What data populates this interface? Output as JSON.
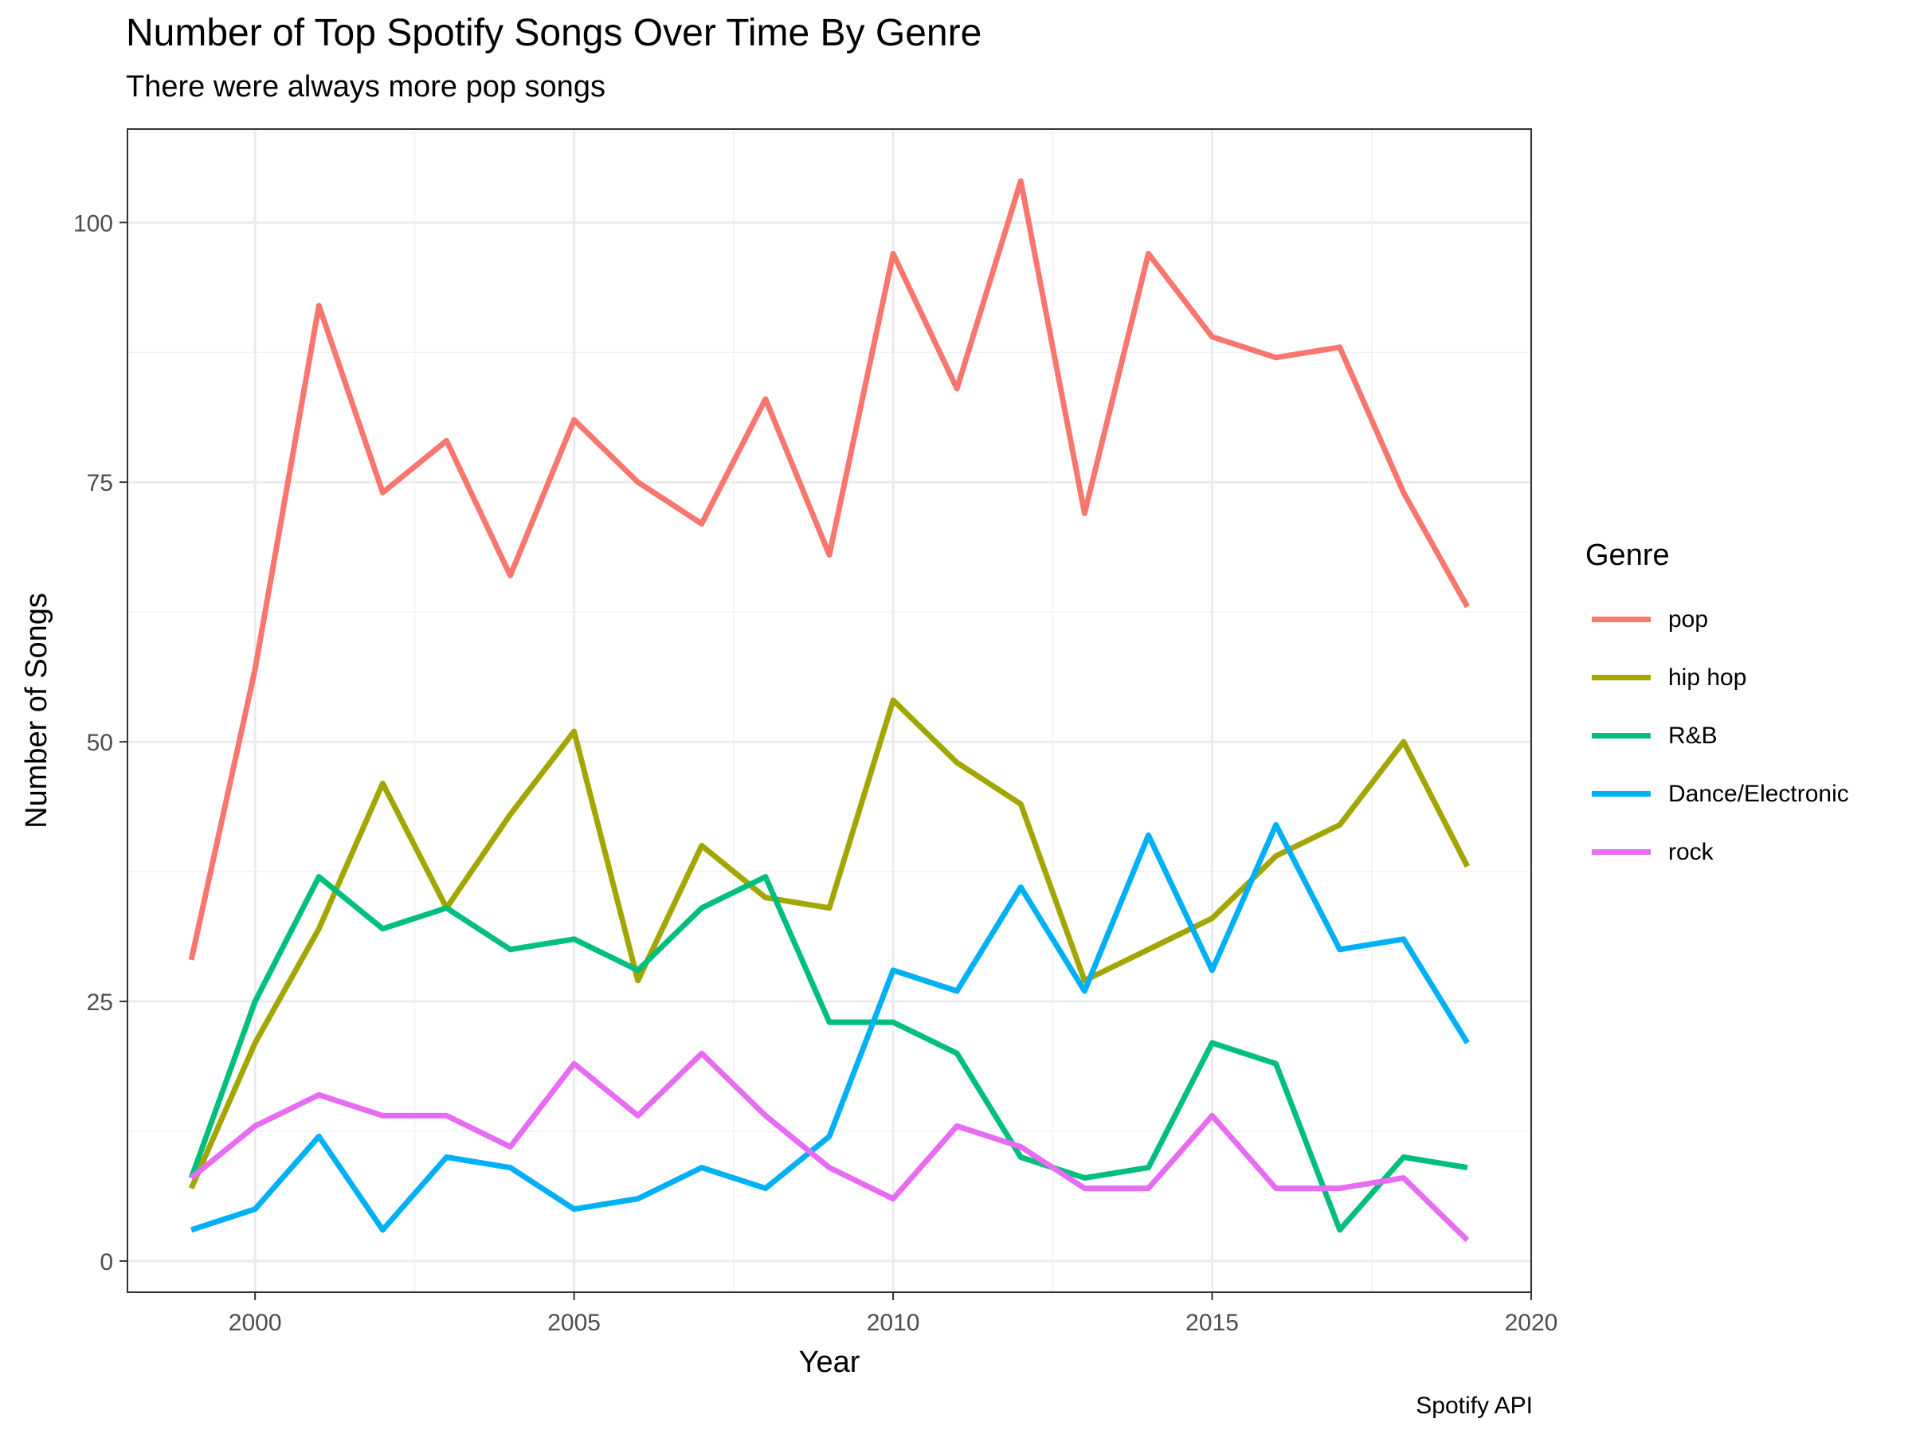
{
  "title": "Number of Top Spotify Songs Over Time By Genre",
  "subtitle": "There were always more pop songs",
  "caption": "Spotify API",
  "chart_data": {
    "type": "line",
    "xlabel": "Year",
    "ylabel": "Number of Songs",
    "xlim": [
      1998,
      2020
    ],
    "ylim": [
      -3,
      109
    ],
    "x_ticks": [
      2000,
      2005,
      2010,
      2015,
      2020
    ],
    "y_ticks": [
      0,
      25,
      50,
      75,
      100
    ],
    "grid": true,
    "legend_title": "Genre",
    "legend_position": "right",
    "x": [
      1999,
      2000,
      2001,
      2002,
      2003,
      2004,
      2005,
      2006,
      2007,
      2008,
      2009,
      2010,
      2011,
      2012,
      2013,
      2014,
      2015,
      2016,
      2017,
      2018,
      2019
    ],
    "series": [
      {
        "name": "pop",
        "color": "#F8766D",
        "values": [
          29,
          57,
          92,
          74,
          79,
          66,
          81,
          75,
          71,
          83,
          68,
          97,
          84,
          104,
          72,
          97,
          89,
          87,
          88,
          74,
          63
        ]
      },
      {
        "name": "hip hop",
        "color": "#A3A500",
        "values": [
          7,
          21,
          32,
          46,
          34,
          43,
          51,
          27,
          40,
          35,
          34,
          54,
          48,
          44,
          27,
          30,
          33,
          39,
          42,
          50,
          38
        ]
      },
      {
        "name": "R&B",
        "color": "#00BF7D",
        "values": [
          8,
          25,
          37,
          32,
          34,
          30,
          31,
          28,
          34,
          37,
          23,
          23,
          20,
          10,
          8,
          9,
          21,
          19,
          3,
          10,
          9
        ]
      },
      {
        "name": "Dance/Electronic",
        "color": "#00B0F6",
        "values": [
          3,
          5,
          12,
          3,
          10,
          9,
          5,
          6,
          9,
          7,
          12,
          28,
          26,
          36,
          26,
          41,
          28,
          42,
          30,
          31,
          21
        ]
      },
      {
        "name": "rock",
        "color": "#E76BF3",
        "values": [
          8,
          13,
          16,
          14,
          14,
          11,
          19,
          14,
          20,
          14,
          9,
          6,
          13,
          11,
          7,
          7,
          14,
          7,
          7,
          8,
          2
        ]
      }
    ]
  }
}
